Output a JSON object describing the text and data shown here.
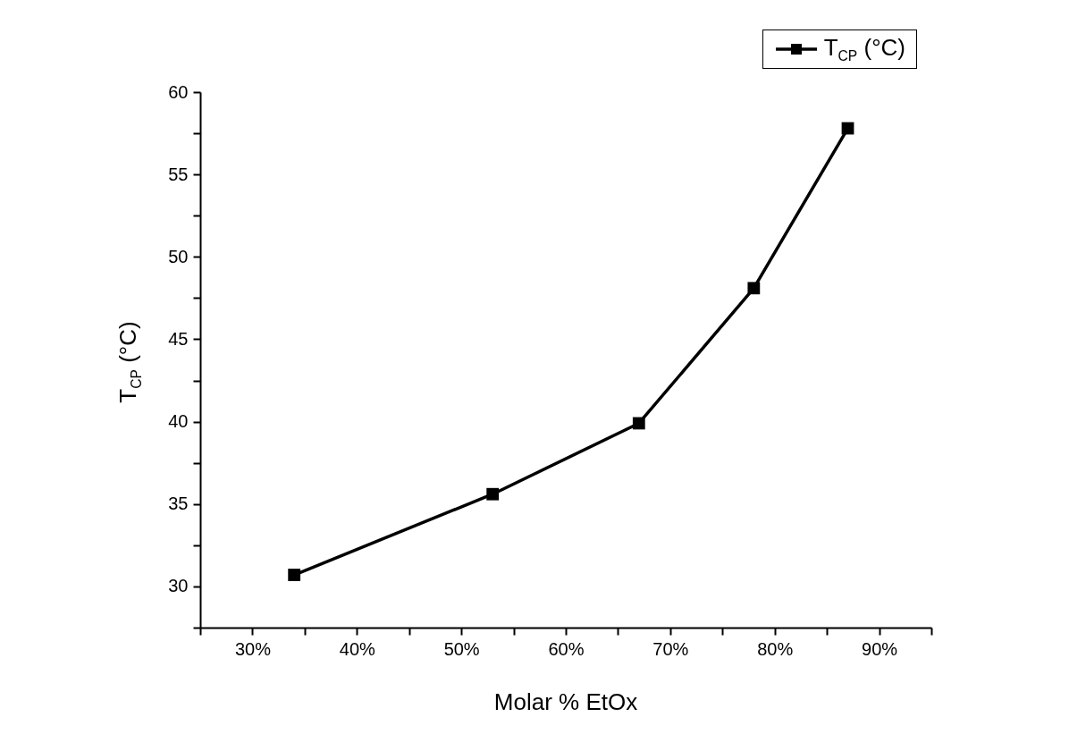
{
  "chart_data": {
    "type": "line",
    "xlabel": "Molar % EtOx",
    "ylabel": "T$_{CP}$ (°C)",
    "x": [
      34,
      53,
      67,
      78,
      87
    ],
    "series": [
      {
        "name": "T$_{CP}$ (°C)",
        "color": "#000000",
        "values": [
          30.7,
          35.6,
          39.9,
          48.1,
          57.8
        ]
      }
    ],
    "xlim": [
      25,
      95
    ],
    "ylim": [
      27.5,
      60
    ],
    "xticks": [
      {
        "value": 25,
        "label": null
      },
      {
        "value": 30,
        "label": "30%"
      },
      {
        "value": 35,
        "label": null
      },
      {
        "value": 40,
        "label": "40%"
      },
      {
        "value": 45,
        "label": null
      },
      {
        "value": 50,
        "label": "50%"
      },
      {
        "value": 55,
        "label": null
      },
      {
        "value": 60,
        "label": "60%"
      },
      {
        "value": 65,
        "label": null
      },
      {
        "value": 70,
        "label": "70%"
      },
      {
        "value": 75,
        "label": null
      },
      {
        "value": 80,
        "label": "80%"
      },
      {
        "value": 85,
        "label": null
      },
      {
        "value": 90,
        "label": "90%"
      },
      {
        "value": 95,
        "label": null
      }
    ],
    "yticks": [
      {
        "value": 27.5,
        "label": null
      },
      30,
      {
        "value": 32.5,
        "label": null
      },
      35,
      {
        "value": 37.5,
        "label": null
      },
      40,
      {
        "value": 42.5,
        "label": null
      },
      45,
      {
        "value": 47.5,
        "label": null
      },
      50,
      {
        "value": 52.5,
        "label": null
      },
      55,
      {
        "value": 57.5,
        "label": null
      },
      60
    ],
    "grid": false,
    "legend": "top right",
    "marker": "square",
    "line_style": "solid"
  }
}
